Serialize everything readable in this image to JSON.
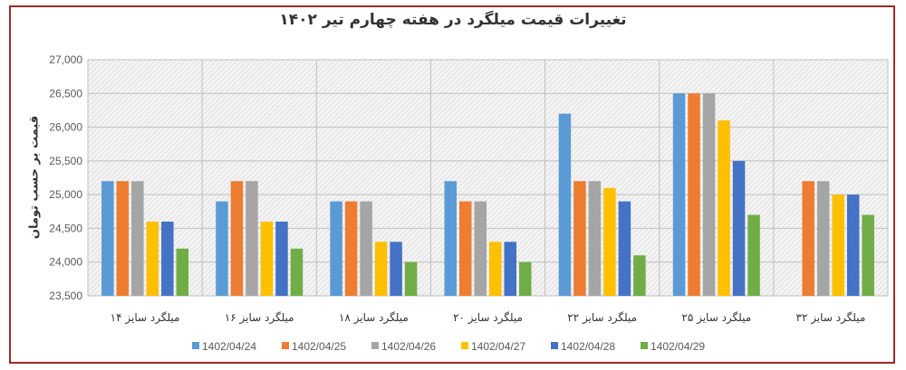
{
  "chart_data": {
    "type": "bar",
    "title": "تغییرات قیمت میلگرد در هفته چهارم تیر ۱۴۰۲",
    "ylabel": "قیمت بر حسب تومان",
    "xlabel": "",
    "ylim": [
      23500,
      27000
    ],
    "yticks": [
      "23,500",
      "24,000",
      "24,500",
      "25,000",
      "25,500",
      "26,000",
      "26,500",
      "27,000"
    ],
    "ytick_values": [
      23500,
      24000,
      24500,
      25000,
      25500,
      26000,
      26500,
      27000
    ],
    "grid": true,
    "legend_position": "bottom",
    "categories": [
      "میلگرد سایز ۱۴",
      "میلگرد سایز ۱۶",
      "میلگرد سایز ۱۸",
      "میلگرد سایز ۲۰",
      "میلگرد سایز ۲۲",
      "میلگرد سایز ۲۵",
      "میلگرد سایز ۳۲"
    ],
    "series": [
      {
        "name": "1402/04/24",
        "color": "#5b9bd5",
        "values": [
          25200,
          24900,
          24900,
          25200,
          26200,
          26500,
          null
        ]
      },
      {
        "name": "1402/04/25",
        "color": "#ed7d31",
        "values": [
          25200,
          25200,
          24900,
          24900,
          25200,
          26500,
          25200
        ]
      },
      {
        "name": "1402/04/26",
        "color": "#a5a5a5",
        "values": [
          25200,
          25200,
          24900,
          24900,
          25200,
          26500,
          25200
        ]
      },
      {
        "name": "1402/04/27",
        "color": "#ffc000",
        "values": [
          24600,
          24600,
          24300,
          24300,
          25100,
          26100,
          25000
        ]
      },
      {
        "name": "1402/04/28",
        "color": "#4472c4",
        "values": [
          24600,
          24600,
          24300,
          24300,
          24900,
          25500,
          25000
        ]
      },
      {
        "name": "1402/04/29",
        "color": "#70ad47",
        "values": [
          24200,
          24200,
          24000,
          24000,
          24100,
          24700,
          24700
        ]
      }
    ]
  }
}
